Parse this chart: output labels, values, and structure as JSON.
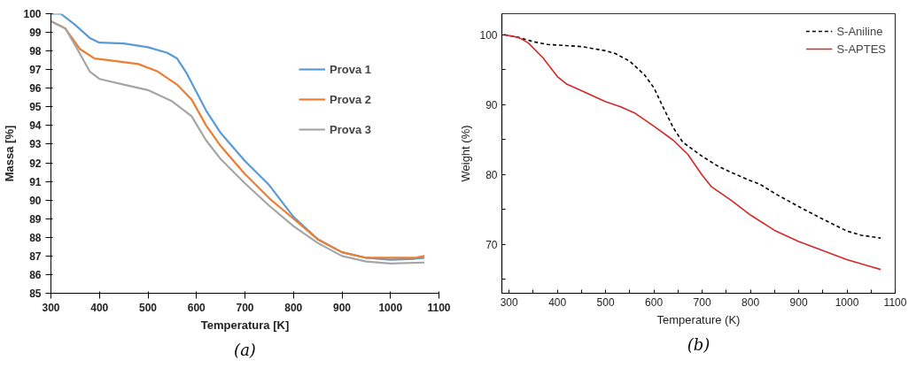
{
  "chart_data": [
    {
      "type": "line",
      "xlabel": "Temperatura [K]",
      "ylabel": "Massa [%]",
      "xlim": [
        300,
        1100
      ],
      "ylim": [
        85,
        100
      ],
      "xticks": [
        300,
        400,
        500,
        600,
        700,
        800,
        900,
        1000,
        1100
      ],
      "yticks": [
        85,
        86,
        87,
        88,
        89,
        90,
        91,
        92,
        93,
        94,
        95,
        96,
        97,
        98,
        99,
        100
      ],
      "legend": "top right",
      "annotations": [
        "(a)"
      ],
      "series": [
        {
          "name": "Prova 1",
          "color": "#5b9bd5",
          "line_style": "solid",
          "x": [
            300,
            320,
            350,
            380,
            400,
            450,
            500,
            540,
            560,
            580,
            600,
            620,
            650,
            700,
            750,
            800,
            850,
            900,
            950,
            1000,
            1050,
            1070
          ],
          "values": [
            100,
            100,
            99.4,
            98.7,
            98.45,
            98.4,
            98.2,
            97.9,
            97.6,
            96.8,
            95.8,
            94.8,
            93.6,
            92.1,
            90.8,
            89.1,
            87.9,
            87.2,
            86.9,
            86.8,
            86.85,
            86.9
          ]
        },
        {
          "name": "Prova 2",
          "color": "#ed7d31",
          "line_style": "solid",
          "x": [
            300,
            330,
            360,
            390,
            420,
            480,
            520,
            560,
            590,
            620,
            650,
            700,
            750,
            800,
            850,
            900,
            950,
            1000,
            1050,
            1070
          ],
          "values": [
            99.6,
            99.2,
            98.1,
            97.6,
            97.5,
            97.3,
            96.9,
            96.2,
            95.4,
            94.0,
            92.9,
            91.4,
            90.1,
            89.0,
            87.9,
            87.2,
            86.9,
            86.9,
            86.9,
            87.0
          ]
        },
        {
          "name": "Prova 3",
          "color": "#a5a5a5",
          "line_style": "solid",
          "x": [
            300,
            330,
            350,
            380,
            400,
            450,
            500,
            550,
            590,
            620,
            650,
            700,
            750,
            800,
            850,
            900,
            950,
            1000,
            1070
          ],
          "values": [
            99.6,
            99.2,
            98.3,
            96.9,
            96.5,
            96.2,
            95.9,
            95.3,
            94.5,
            93.2,
            92.2,
            90.9,
            89.7,
            88.6,
            87.7,
            87.0,
            86.7,
            86.6,
            86.65
          ]
        }
      ]
    },
    {
      "type": "line",
      "xlabel": "Temperature (K)",
      "ylabel": "Weight (%)",
      "xlim": [
        285,
        1100
      ],
      "ylim": [
        63,
        103
      ],
      "xticks": [
        300,
        {
          "value": 350,
          "label": null
        },
        400,
        {
          "value": 450,
          "label": null
        },
        500,
        {
          "value": 550,
          "label": null
        },
        600,
        {
          "value": 650,
          "label": null
        },
        700,
        {
          "value": 750,
          "label": null
        },
        800,
        {
          "value": 850,
          "label": null
        },
        900,
        {
          "value": 950,
          "label": null
        },
        1000,
        {
          "value": 1050,
          "label": null
        },
        1100
      ],
      "yticks": [
        {
          "value": 65,
          "label": null
        },
        70,
        {
          "value": 75,
          "label": null
        },
        80,
        {
          "value": 85,
          "label": null
        },
        90,
        {
          "value": 95,
          "label": null
        },
        100
      ],
      "legend": "top right",
      "annotations": [
        "(b)"
      ],
      "series": [
        {
          "name": "S-Aniline",
          "color": "#000000",
          "line_style": "dashed",
          "x": [
            290,
            320,
            350,
            380,
            450,
            500,
            520,
            550,
            580,
            600,
            620,
            640,
            660,
            700,
            730,
            760,
            800,
            820,
            850,
            900,
            950,
            1000,
            1030,
            1070
          ],
          "values": [
            100,
            99.6,
            99.0,
            98.6,
            98.3,
            97.7,
            97.3,
            96.2,
            94.3,
            92.4,
            89.5,
            86.7,
            84.6,
            82.6,
            81.3,
            80.3,
            79.1,
            78.6,
            77.3,
            75.4,
            73.6,
            71.9,
            71.3,
            70.9
          ]
        },
        {
          "name": "S-APTES",
          "color": "#d62728",
          "line_style": "solid",
          "x": [
            290,
            320,
            340,
            370,
            400,
            420,
            450,
            500,
            530,
            560,
            600,
            640,
            670,
            700,
            720,
            760,
            800,
            850,
            900,
            950,
            1000,
            1050,
            1070
          ],
          "values": [
            100,
            99.6,
            98.8,
            96.7,
            94.0,
            92.9,
            92.0,
            90.4,
            89.7,
            88.8,
            86.9,
            84.9,
            82.9,
            79.9,
            78.2,
            76.3,
            74.2,
            72.0,
            70.4,
            69.1,
            67.8,
            66.8,
            66.4
          ]
        }
      ]
    }
  ]
}
